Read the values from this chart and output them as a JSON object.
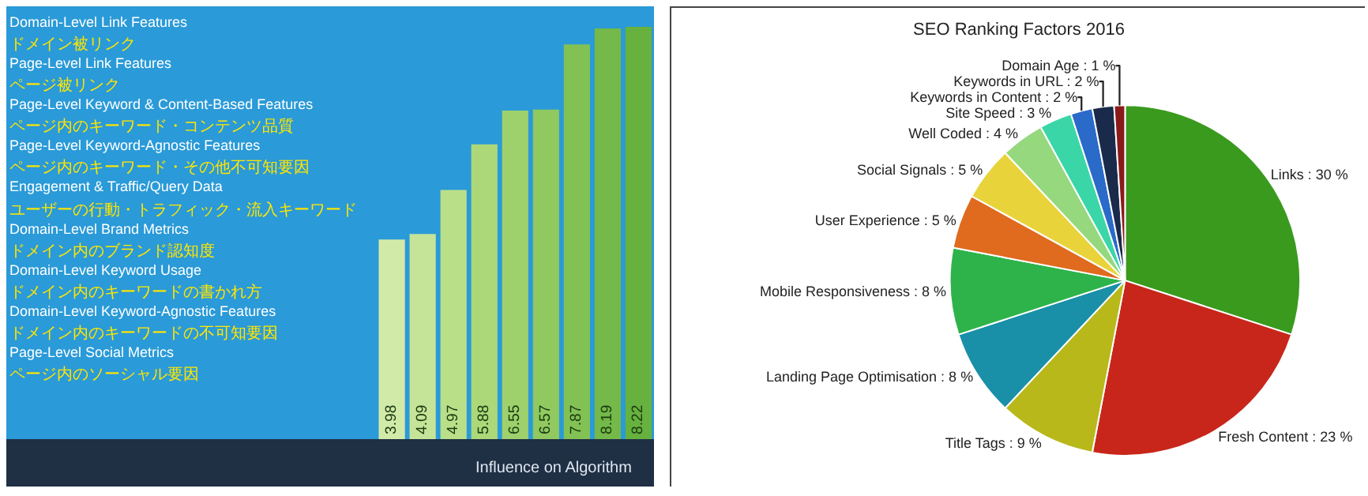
{
  "chart_data": [
    {
      "type": "bar",
      "xlabel": "Influence on Algorithm",
      "categories": [
        null,
        null,
        null,
        null,
        null,
        null,
        null,
        null,
        null
      ],
      "values": [
        3.98,
        4.09,
        4.97,
        5.88,
        6.55,
        6.57,
        7.87,
        8.19,
        8.22
      ],
      "colors": [
        "#d2eaa8",
        "#c6e498",
        "#badf89",
        "#acd87a",
        "#9ed16c",
        "#90c960",
        "#82c154",
        "#74b949",
        "#67b13f"
      ],
      "data_labels": true,
      "annotations": [
        "Domain-Level Link Features",
        "ドメイン被リンク",
        "Page-Level Link Features",
        "ページ被リンク",
        "Page-Level Keyword & Content-Based Features",
        "ページ内のキーワード・コンテンツ品質",
        "Page-Level Keyword-Agnostic Features",
        "ページ内のキーワード・その他不可知要因",
        "Engagement & Traffic/Query Data",
        "ユーザーの行動・トラフィック・流入キーワード",
        "Domain-Level Brand Metrics",
        "ドメイン内のブランド認知度",
        "Domain-Level Keyword Usage",
        "ドメイン内のキーワードの書かれ方",
        "Domain-Level Keyword-Agnostic Features",
        "ドメイン内のキーワードの不可知要因",
        "Page-Level Social Metrics",
        "ページ内のソーシャル要因"
      ]
    },
    {
      "type": "pie",
      "title": "SEO Ranking Factors 2016",
      "categories": [
        "Links",
        "Fresh Content",
        "Title Tags",
        "Landing Page Optimisation",
        "Mobile Responsiveness",
        "User Experience",
        "Social Signals",
        "Well Coded",
        "Site Speed",
        "Keywords in Content",
        "Keywords in URL",
        "Domain Age"
      ],
      "values": [
        30,
        23,
        9,
        8,
        8,
        5,
        5,
        4,
        3,
        2,
        2,
        1
      ],
      "value_labels": [
        "30 %",
        "23 %",
        "9 %",
        "8 %",
        "8 %",
        "5 %",
        "5 %",
        "4 %",
        "3 %",
        "2 %",
        "2 %",
        "1 %"
      ],
      "colors": [
        "#3a9a1e",
        "#c8261a",
        "#b8b81a",
        "#1a8fa8",
        "#2eb34a",
        "#e06a1e",
        "#e8d43a",
        "#96d87e",
        "#3ad6a8",
        "#2a6ac8",
        "#1a2a4a",
        "#8a1a1a"
      ],
      "legend": false
    }
  ]
}
